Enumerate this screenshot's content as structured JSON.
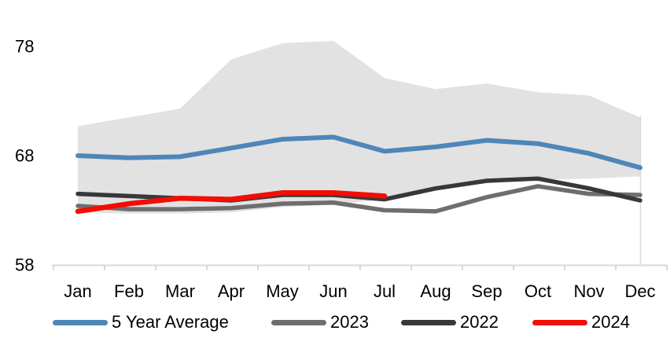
{
  "chart_data": {
    "type": "line",
    "title": "",
    "categories": [
      "Jan",
      "Feb",
      "Mar",
      "Apr",
      "May",
      "Jun",
      "Jul",
      "Aug",
      "Sep",
      "Oct",
      "Nov",
      "Dec"
    ],
    "y_tick_labels": [
      "78",
      "68",
      "58"
    ],
    "y_tick_values": [
      78,
      68,
      58
    ],
    "ylim": [
      58,
      80
    ],
    "grid": false,
    "legend_position": "bottom",
    "band": {
      "name": "5 Year Range",
      "color": "#e2e2e2",
      "top": [
        70.7,
        71.5,
        72.3,
        76.8,
        78.3,
        78.5,
        75.1,
        74.1,
        74.6,
        73.8,
        73.5,
        71.5
      ],
      "bottom": [
        62.8,
        62.7,
        62.7,
        62.8,
        63.3,
        63.5,
        64.0,
        64.8,
        65.6,
        65.8,
        65.9,
        66.1
      ]
    },
    "series": [
      {
        "name": "5 Year Average",
        "color": "#4e86b8",
        "stroke_width": 6,
        "values": [
          68.0,
          67.8,
          67.9,
          68.7,
          69.5,
          69.7,
          68.4,
          68.8,
          69.4,
          69.1,
          68.2,
          66.9
        ]
      },
      {
        "name": "2023",
        "color": "#6e6e6e",
        "stroke_width": 5.5,
        "values": [
          63.4,
          63.1,
          63.1,
          63.2,
          63.6,
          63.7,
          63.0,
          62.9,
          64.2,
          65.2,
          64.5,
          64.4
        ]
      },
      {
        "name": "2022",
        "color": "#383838",
        "stroke_width": 5.5,
        "values": [
          64.5,
          64.3,
          64.1,
          63.9,
          64.4,
          64.4,
          64.0,
          65.0,
          65.7,
          65.9,
          65.0,
          63.9
        ]
      },
      {
        "name": "2024",
        "color": "#f20d05",
        "stroke_width": 6.5,
        "values": [
          62.9,
          63.6,
          64.1,
          64.0,
          64.6,
          64.6,
          64.3
        ]
      }
    ],
    "axis_color": "#d9d9d9",
    "label_color": "#000000"
  },
  "legend": {
    "items": [
      {
        "label": "5 Year Average",
        "color": "#4e86b8"
      },
      {
        "label": "2023",
        "color": "#6e6e6e"
      },
      {
        "label": "2022",
        "color": "#383838"
      },
      {
        "label": "2024",
        "color": "#f20d05"
      }
    ]
  }
}
